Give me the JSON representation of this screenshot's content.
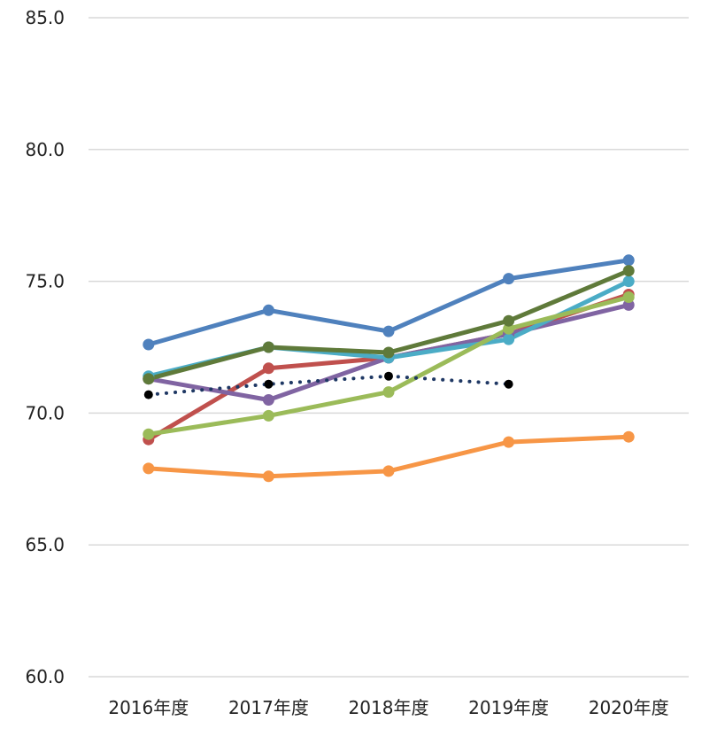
{
  "chart_data": {
    "type": "line",
    "title": "",
    "xlabel": "",
    "ylabel": "",
    "categories": [
      "2016年度",
      "2017年度",
      "2018年度",
      "2019年度",
      "2020年度"
    ],
    "ylim": [
      60.0,
      85.0
    ],
    "yticks": [
      "60.0",
      "65.0",
      "70.0",
      "75.0",
      "80.0",
      "85.0"
    ],
    "grid": true,
    "legend": "none",
    "series": [
      {
        "color": "#4f81bd",
        "style": "solid",
        "values": [
          72.6,
          73.9,
          73.1,
          75.1,
          75.8
        ]
      },
      {
        "color": "#c0504d",
        "style": "solid",
        "values": [
          69.0,
          71.7,
          72.1,
          73.0,
          74.5
        ]
      },
      {
        "color": "#8064a2",
        "style": "solid",
        "values": [
          71.3,
          70.5,
          72.1,
          73.0,
          74.1
        ]
      },
      {
        "color": "#4bacc6",
        "style": "solid",
        "values": [
          71.4,
          72.5,
          72.1,
          72.8,
          75.0
        ]
      },
      {
        "color": "#9bbb59",
        "style": "solid",
        "values": [
          69.2,
          69.9,
          70.8,
          73.2,
          74.4
        ]
      },
      {
        "color": "#f79646",
        "style": "solid",
        "values": [
          67.9,
          67.6,
          67.8,
          68.9,
          69.1
        ]
      },
      {
        "color": "#5f7a3a",
        "style": "solid",
        "values": [
          71.3,
          72.5,
          72.3,
          73.5,
          75.4
        ]
      },
      {
        "color": "#1f3864",
        "style": "dotted",
        "marker_color": "#000000",
        "values": [
          70.7,
          71.1,
          71.4,
          71.1,
          null
        ]
      }
    ]
  }
}
